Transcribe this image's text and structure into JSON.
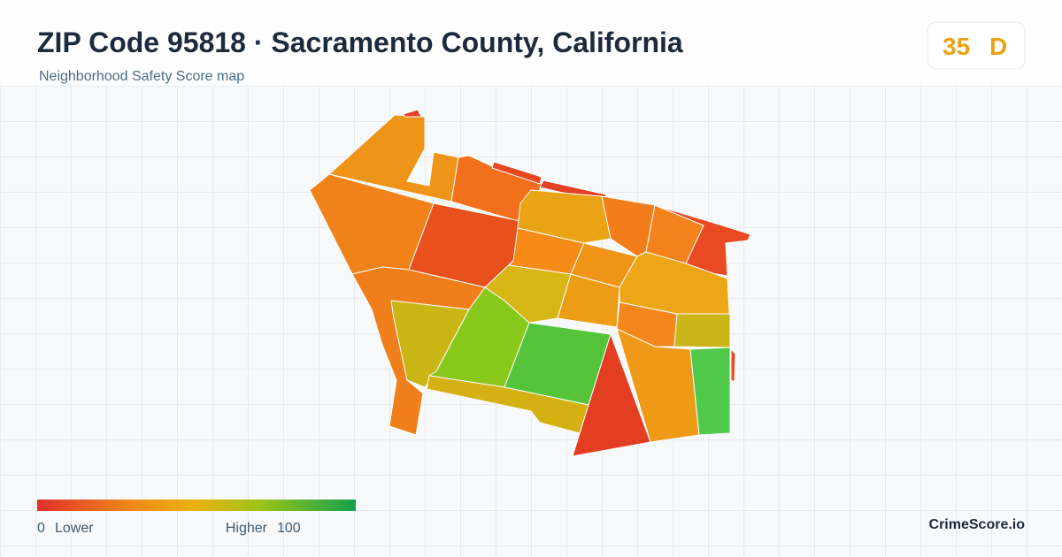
{
  "header": {
    "title": "ZIP Code 95818 · Sacramento County, California",
    "subtitle": "Neighborhood Safety Score map"
  },
  "score": {
    "value": 35,
    "grade": "D"
  },
  "legend": {
    "min": 0,
    "min_label": "Lower",
    "max_label": "Higher",
    "max": 100
  },
  "brand": "CrimeScore.io"
}
